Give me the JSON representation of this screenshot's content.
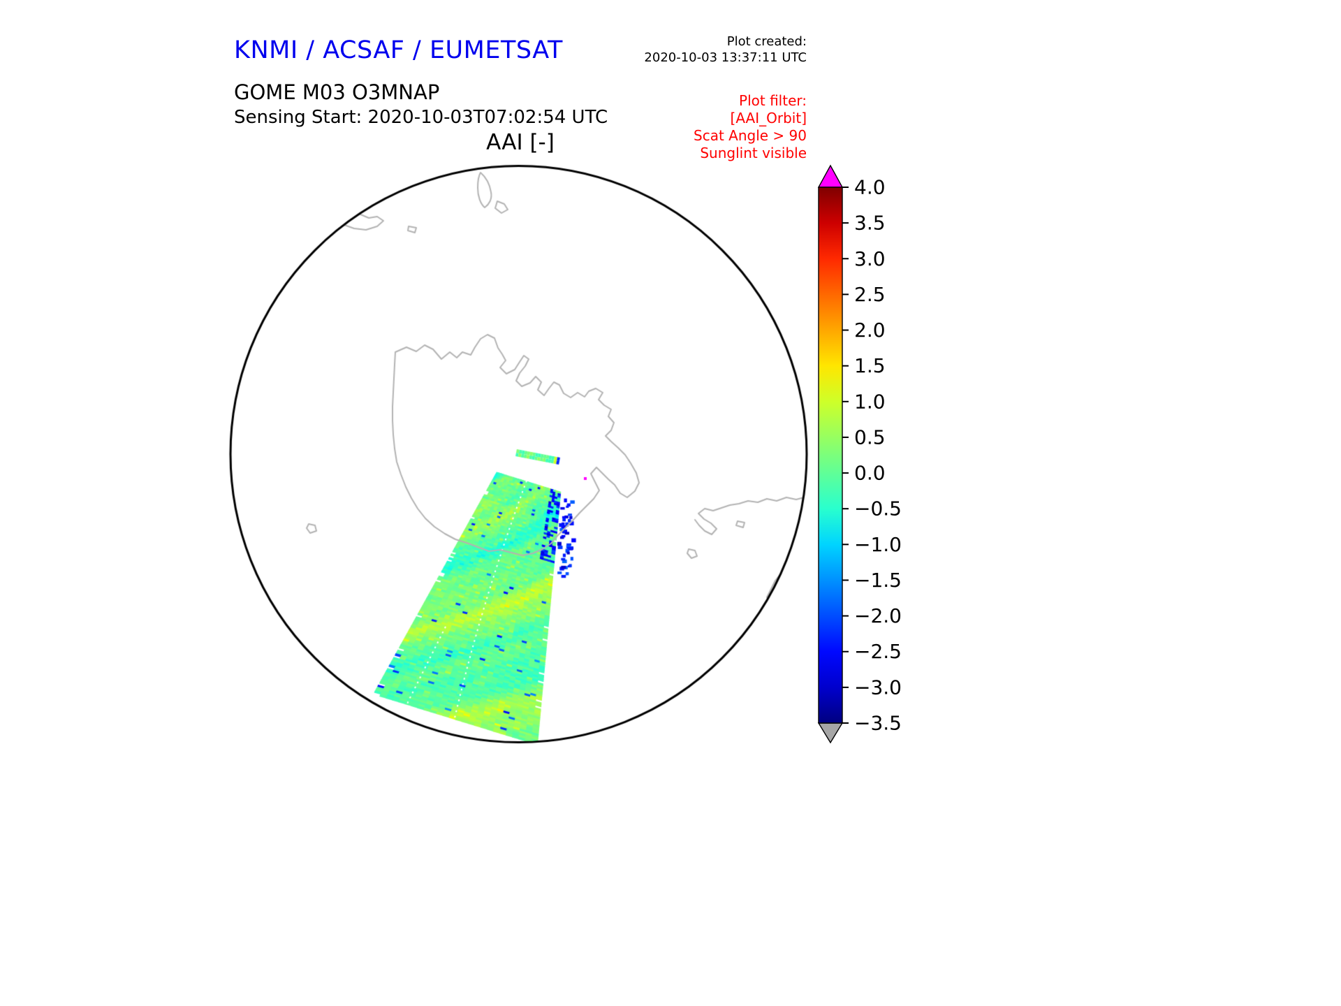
{
  "header": {
    "agency_title": "KNMI / ACSAF / EUMETSAT",
    "plot_created_label": "Plot created:",
    "plot_created_value": "2020-10-03 13:37:11 UTC",
    "product_title": "GOME M03 O3MNAP",
    "sensing_start_line": "Sensing Start: 2020-10-03T07:02:54 UTC",
    "plot_title": "AAI [-]"
  },
  "plot_filter": {
    "title": "Plot filter:",
    "lines": [
      "[AAI_Orbit]",
      "Scat Angle > 90",
      "Sunglint visible"
    ]
  },
  "colors": {
    "agency_title": "#0000ee",
    "filter_text": "#ff0000",
    "coastline": "#b3b3b3",
    "circle_outline": "#000000",
    "over_arrow": "#ff00ff",
    "under_arrow": "#a6a6a6",
    "seam": "#ffffff"
  },
  "colorbar": {
    "label": "AAI [-]",
    "min": -3.5,
    "max": 4.0,
    "tick_labels": [
      "4.0",
      "3.5",
      "3.0",
      "2.5",
      "2.0",
      "1.5",
      "1.0",
      "0.5",
      "0.0",
      "−0.5",
      "−1.0",
      "−1.5",
      "−2.0",
      "−2.5",
      "−3.0",
      "−3.5"
    ],
    "colormap_stops": [
      {
        "v": 4.0,
        "c": "#7f0000"
      },
      {
        "v": 3.5,
        "c": "#cd0000"
      },
      {
        "v": 3.0,
        "c": "#ff2900"
      },
      {
        "v": 2.5,
        "c": "#ff6800"
      },
      {
        "v": 2.0,
        "c": "#ffa700"
      },
      {
        "v": 1.5,
        "c": "#ffe600"
      },
      {
        "v": 1.0,
        "c": "#ceff29"
      },
      {
        "v": 0.5,
        "c": "#97ff60"
      },
      {
        "v": 0.0,
        "c": "#60ff97"
      },
      {
        "v": -0.5,
        "c": "#29ffce"
      },
      {
        "v": -1.0,
        "c": "#00d4ff"
      },
      {
        "v": -1.5,
        "c": "#0091ff"
      },
      {
        "v": -2.0,
        "c": "#004dff"
      },
      {
        "v": -2.5,
        "c": "#0008ff"
      },
      {
        "v": -3.0,
        "c": "#0000cd"
      },
      {
        "v": -3.5,
        "c": "#000080"
      }
    ]
  },
  "chart_data": {
    "type": "heatmap",
    "title": "AAI [-]",
    "subtitle": "GOME M03 O3MNAP — Sensing Start: 2020-10-03T07:02:54 UTC",
    "projection": "polar stereographic, Antarctic (South Pole) view inside a circular map boundary",
    "grid": false,
    "legend_position": "right colorbar",
    "colorbar": {
      "label": "AAI [-]",
      "range": [
        -3.5,
        4.0
      ],
      "ticks": [
        4.0,
        3.5,
        3.0,
        2.5,
        2.0,
        1.5,
        1.0,
        0.5,
        0.0,
        -0.5,
        -1.0,
        -1.5,
        -2.0,
        -2.5,
        -3.0,
        -3.5
      ],
      "tick_step": 0.5,
      "colormap": "jet-like (dark blue → cyan → green → yellow → orange → red → dark red)",
      "over_color": "magenta",
      "under_color": "gray"
    },
    "series": [
      {
        "name": "AAI orbit swath (GOME-2 / MetOp-A)",
        "summary": "Single diagonal satellite swath running from near the map centre (south pole) toward the lower-left edge of the circular map; swath widens toward the edge. AAI values are mostly between -1.0 and +1.3 (cyan / spring-green / yellow patches). Isolated dark-blue pixels (≈ -2 to -3) occur along the eastern (upper-right) swath edge and as sparse specks inside the swath. A thin detached swath sliver lies just right of the pole. One or two magenta out-of-range pixels near the swath start. A white dashed nadir seam runs along the swath centreline.",
        "approx_value_range": [
          -3.0,
          1.4
        ],
        "dominant_values": [
          -0.5,
          0.0,
          0.5,
          1.0
        ]
      }
    ],
    "map_features": [
      "Antarctica coastline with Antarctic Peninsula (gray)",
      "Southern-hemisphere coastline fragments at upper and right map edge (gray)",
      "small islands (gray)"
    ],
    "filters_applied": [
      "[AAI_Orbit]",
      "Scat Angle > 90",
      "Sunglint visible"
    ]
  }
}
